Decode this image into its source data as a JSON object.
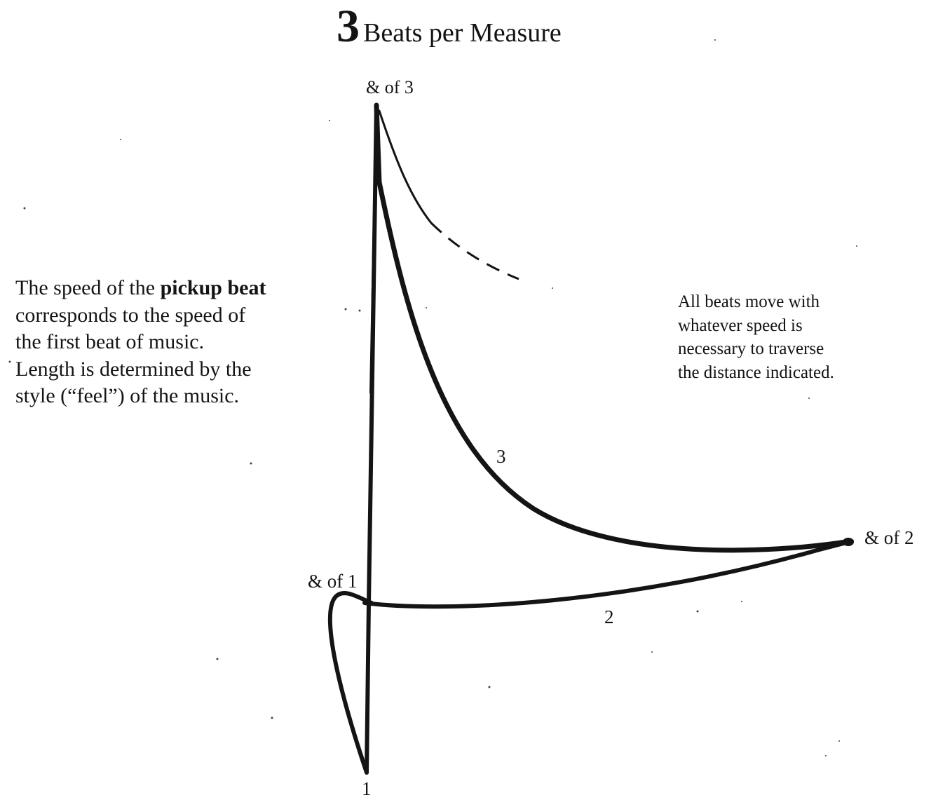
{
  "title": {
    "number": "3",
    "text": "Beats per Measure"
  },
  "left_note": {
    "lines": [
      {
        "pre": "The speed of the ",
        "bold": "pickup beat"
      },
      {
        "pre": "corresponds to the speed of",
        "bold": ""
      },
      {
        "pre": "the first beat of music.",
        "bold": ""
      },
      {
        "pre": "Length is determined by the",
        "bold": ""
      },
      {
        "pre": "style (“feel”) of the music.",
        "bold": ""
      }
    ]
  },
  "right_note": {
    "lines": [
      "All beats move with",
      "whatever speed is",
      "necessary to traverse",
      "the distance indicated."
    ]
  },
  "labels": {
    "and_of_3": "& of 3",
    "and_of_2": "& of 2",
    "and_of_1": "& of 1",
    "beat_1": "1",
    "beat_2": "2",
    "beat_3": "3"
  },
  "colors": {
    "ink": "#141414",
    "paper": "#ffffff"
  }
}
